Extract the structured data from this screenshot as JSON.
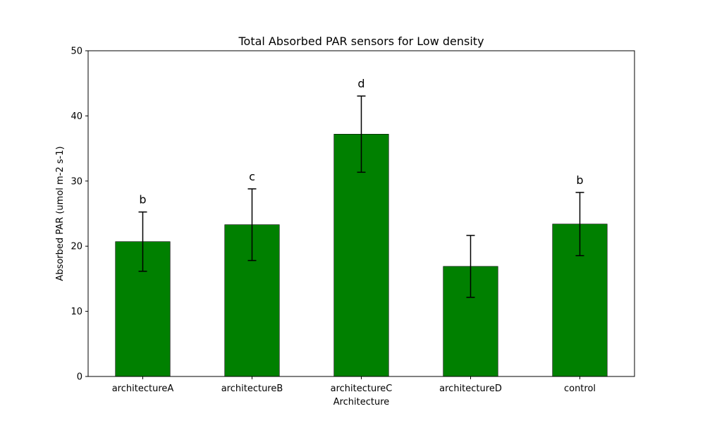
{
  "chart_data": {
    "type": "bar",
    "title": "Total Absorbed PAR sensors for Low density",
    "xlabel": "Architecture",
    "ylabel": "Absorbed PAR (umol m-2 s-1)",
    "categories": [
      "architectureA",
      "architectureB",
      "architectureC",
      "architectureD",
      "control"
    ],
    "values": [
      20.7,
      23.3,
      37.2,
      16.9,
      23.4
    ],
    "errors": [
      4.55,
      5.5,
      5.85,
      4.75,
      4.85
    ],
    "significance_labels": [
      "b",
      "c",
      "d",
      "",
      "b"
    ],
    "ylim": [
      0,
      50
    ],
    "yticks": [
      0,
      10,
      20,
      30,
      40,
      50
    ],
    "grid": false,
    "colors": {
      "bar": "#008000",
      "bar_edge": "#000000",
      "error_bar": "#000000"
    }
  }
}
